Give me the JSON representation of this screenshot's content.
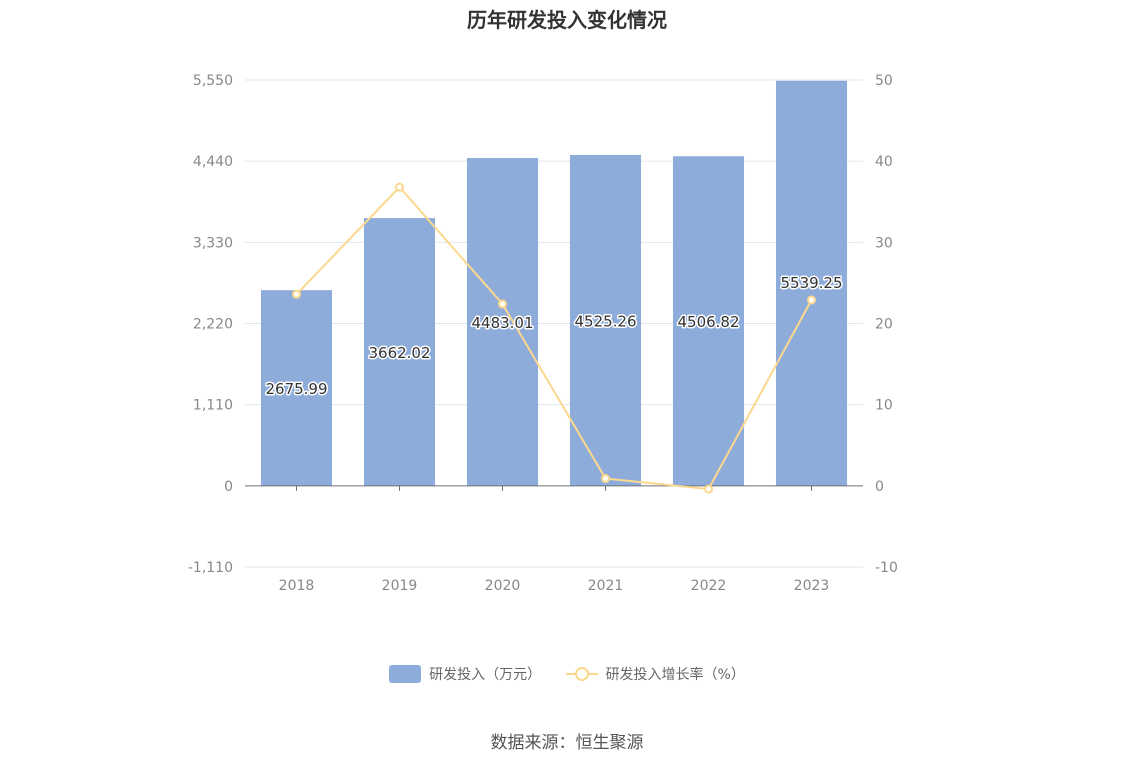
{
  "chart_data": {
    "type": "bar",
    "title": "历年研发投入变化情况",
    "categories": [
      "2018",
      "2019",
      "2020",
      "2021",
      "2022",
      "2023"
    ],
    "series": [
      {
        "name": "研发投入（万元）",
        "type": "bar",
        "axis": "left",
        "values": [
          2675.99,
          3662.02,
          4483.01,
          4525.26,
          4506.82,
          5539.25
        ],
        "labels": [
          "2675.99",
          "3662.02",
          "4483.01",
          "4525.26",
          "4506.82",
          "5539.25"
        ]
      },
      {
        "name": "研发投入增长率（%）",
        "type": "line",
        "axis": "right",
        "values": [
          23.6,
          36.8,
          22.4,
          0.9,
          -0.4,
          22.9
        ]
      }
    ],
    "y_left": {
      "min": -1110,
      "max": 5550,
      "ticks": [
        -1110,
        0,
        1110,
        2220,
        3330,
        4440,
        5550
      ],
      "tick_labels": [
        "-1,110",
        "0",
        "1,110",
        "2,220",
        "3,330",
        "4,440",
        "5,550"
      ]
    },
    "y_right": {
      "min": -10,
      "max": 50,
      "ticks": [
        -10,
        0,
        10,
        20,
        30,
        40,
        50
      ],
      "tick_labels": [
        "-10",
        "0",
        "10",
        "20",
        "30",
        "40",
        "50"
      ]
    },
    "grid": true,
    "legend_position": "bottom",
    "colors": {
      "bar": "#8eacd9",
      "line": "#fcd88f",
      "grid": "#e0e6f1",
      "axis": "#6e7079"
    }
  },
  "source": "数据来源：恒生聚源"
}
